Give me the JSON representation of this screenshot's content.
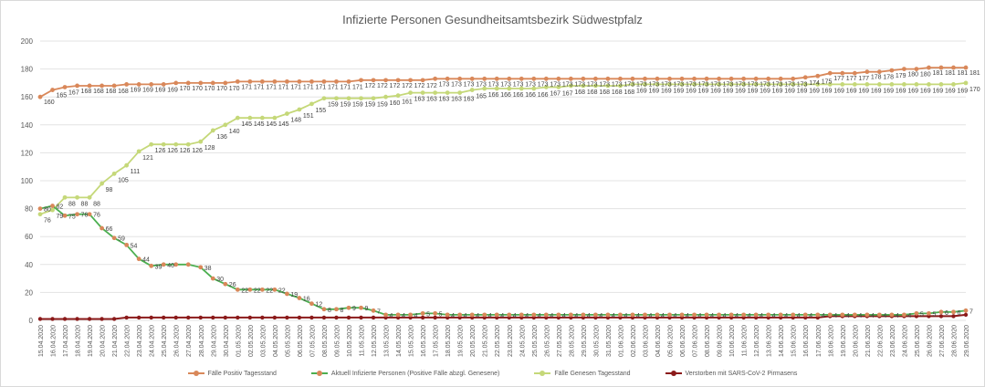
{
  "chart_data": {
    "type": "line",
    "title": "Infizierte Personen Gesundheitsamtsbezirk Südwestpfalz",
    "xlabel": "",
    "ylabel": "",
    "ylim": [
      0,
      200
    ],
    "yticks": [
      0,
      20,
      40,
      60,
      80,
      100,
      120,
      140,
      160,
      180,
      200
    ],
    "grid": true,
    "legend_position": "bottom",
    "categories": [
      "15.04.2020",
      "16.04.2020",
      "17.04.2020",
      "18.04.2020",
      "19.04.2020",
      "20.04.2020",
      "21.04.2020",
      "22.04.2020",
      "23.04.2020",
      "24.04.2020",
      "25.04.2020",
      "26.04.2020",
      "27.04.2020",
      "28.04.2020",
      "29.04.2020",
      "30.04.2020",
      "01.05.2020",
      "02.05.2020",
      "03.05.2020",
      "04.05.2020",
      "05.05.2020",
      "06.05.2020",
      "07.05.2020",
      "08.05.2020",
      "09.05.2020",
      "10.05.2020",
      "11.05.2020",
      "12.05.2020",
      "13.05.2020",
      "14.05.2020",
      "15.05.2020",
      "16.05.2020",
      "17.05.2020",
      "18.05.2020",
      "19.05.2020",
      "20.05.2020",
      "21.05.2020",
      "22.05.2020",
      "23.05.2020",
      "24.05.2020",
      "25.05.2020",
      "26.05.2020",
      "27.05.2020",
      "28.05.2020",
      "29.05.2020",
      "30.05.2020",
      "31.05.2020",
      "01.06.2020",
      "02.06.2020",
      "03.06.2020",
      "04.06.2020",
      "05.06.2020",
      "06.06.2020",
      "07.06.2020",
      "08.06.2020",
      "09.06.2020",
      "10.06.2020",
      "11.06.2020",
      "12.06.2020",
      "13.06.2020",
      "14.06.2020",
      "15.06.2020",
      "16.06.2020",
      "17.06.2020",
      "18.06.2020",
      "19.06.2020",
      "20.06.2020",
      "21.06.2020",
      "22.06.2020",
      "23.06.2020",
      "24.06.2020",
      "25.06.2020",
      "26.06.2020",
      "27.06.2020",
      "28.06.2020",
      "29.06.2020"
    ],
    "series": [
      {
        "name": "Fälle Positiv Tagesstand",
        "color": "#d9885a",
        "values": [
          160,
          165,
          167,
          168,
          168,
          168,
          168,
          169,
          169,
          169,
          169,
          170,
          170,
          170,
          170,
          170,
          171,
          171,
          171,
          171,
          171,
          171,
          171,
          171,
          171,
          171,
          172,
          172,
          172,
          172,
          172,
          172,
          173,
          173,
          173,
          173,
          173,
          173,
          173,
          173,
          173,
          173,
          173,
          173,
          173,
          173,
          173,
          173,
          173,
          173,
          173,
          173,
          173,
          173,
          173,
          173,
          173,
          173,
          173,
          173,
          173,
          173,
          174,
          175,
          177,
          177,
          177,
          178,
          178,
          179,
          180,
          180,
          181,
          181,
          181,
          181
        ],
        "labels": true
      },
      {
        "name": "Aktuell Infizierte Personen (Positive Fälle abzgl. Genesene)",
        "color": "#4caf50",
        "values": [
          80,
          82,
          75,
          76,
          76,
          66,
          59,
          54,
          44,
          39,
          40,
          40,
          40,
          38,
          30,
          26,
          22,
          22,
          22,
          22,
          19,
          16,
          12,
          8,
          8,
          9,
          9,
          7,
          4,
          4,
          4,
          5,
          5,
          4,
          4,
          4,
          4,
          4,
          4,
          4,
          4,
          4,
          4,
          4,
          4,
          4,
          4,
          4,
          4,
          4,
          4,
          4,
          4,
          4,
          4,
          4,
          4,
          4,
          4,
          4,
          4,
          4,
          4,
          4,
          4,
          4,
          4,
          4,
          4,
          4,
          4,
          5,
          5,
          6,
          6,
          7
        ],
        "labels": [
          80,
          82,
          75,
          76,
          76,
          66,
          59,
          54,
          44,
          39,
          40,
          null,
          null,
          38,
          30,
          26,
          22,
          22,
          22,
          22,
          19,
          16,
          12,
          8,
          8,
          9,
          9,
          7,
          4,
          4,
          4,
          5,
          5,
          4,
          4,
          4,
          4,
          4,
          4,
          4,
          4,
          4,
          4,
          4,
          4,
          4,
          4,
          4,
          4,
          4,
          4,
          4,
          4,
          4,
          4,
          4,
          4,
          4,
          4,
          4,
          4,
          4,
          4,
          4,
          4,
          4,
          4,
          4,
          4,
          4,
          4,
          5,
          5,
          6,
          6,
          7
        ]
      },
      {
        "name": "Fälle Genesen Tagesstand",
        "color": "#c5d879",
        "values": [
          76,
          79,
          88,
          88,
          88,
          98,
          105,
          111,
          121,
          126,
          126,
          126,
          126,
          128,
          136,
          140,
          145,
          145,
          145,
          145,
          148,
          151,
          155,
          159,
          159,
          159,
          159,
          159,
          160,
          161,
          163,
          163,
          163,
          163,
          163,
          165,
          166,
          166,
          166,
          166,
          166,
          167,
          167,
          168,
          168,
          168,
          168,
          168,
          169,
          169,
          169,
          169,
          169,
          169,
          169,
          169,
          169,
          169,
          169,
          169,
          169,
          169,
          169,
          169,
          169,
          169,
          169,
          169,
          169,
          169,
          169,
          169,
          169,
          169,
          169,
          170
        ],
        "labels": true
      },
      {
        "name": "Verstorben mit SARS-CoV-2 Pirmasens",
        "color": "#8b1a1a",
        "values": [
          1,
          1,
          1,
          1,
          1,
          1,
          1,
          2,
          2,
          2,
          2,
          2,
          2,
          2,
          2,
          2,
          2,
          2,
          2,
          2,
          2,
          2,
          2,
          2,
          2,
          2,
          2,
          2,
          2,
          2,
          2,
          2,
          2,
          2,
          2,
          2,
          2,
          2,
          2,
          2,
          2,
          2,
          2,
          2,
          2,
          2,
          2,
          2,
          2,
          2,
          2,
          2,
          2,
          2,
          2,
          2,
          2,
          2,
          2,
          2,
          2,
          2,
          2,
          2,
          3,
          3,
          3,
          3,
          3,
          3,
          3,
          3,
          3,
          3,
          3,
          4
        ],
        "labels": false
      }
    ]
  }
}
